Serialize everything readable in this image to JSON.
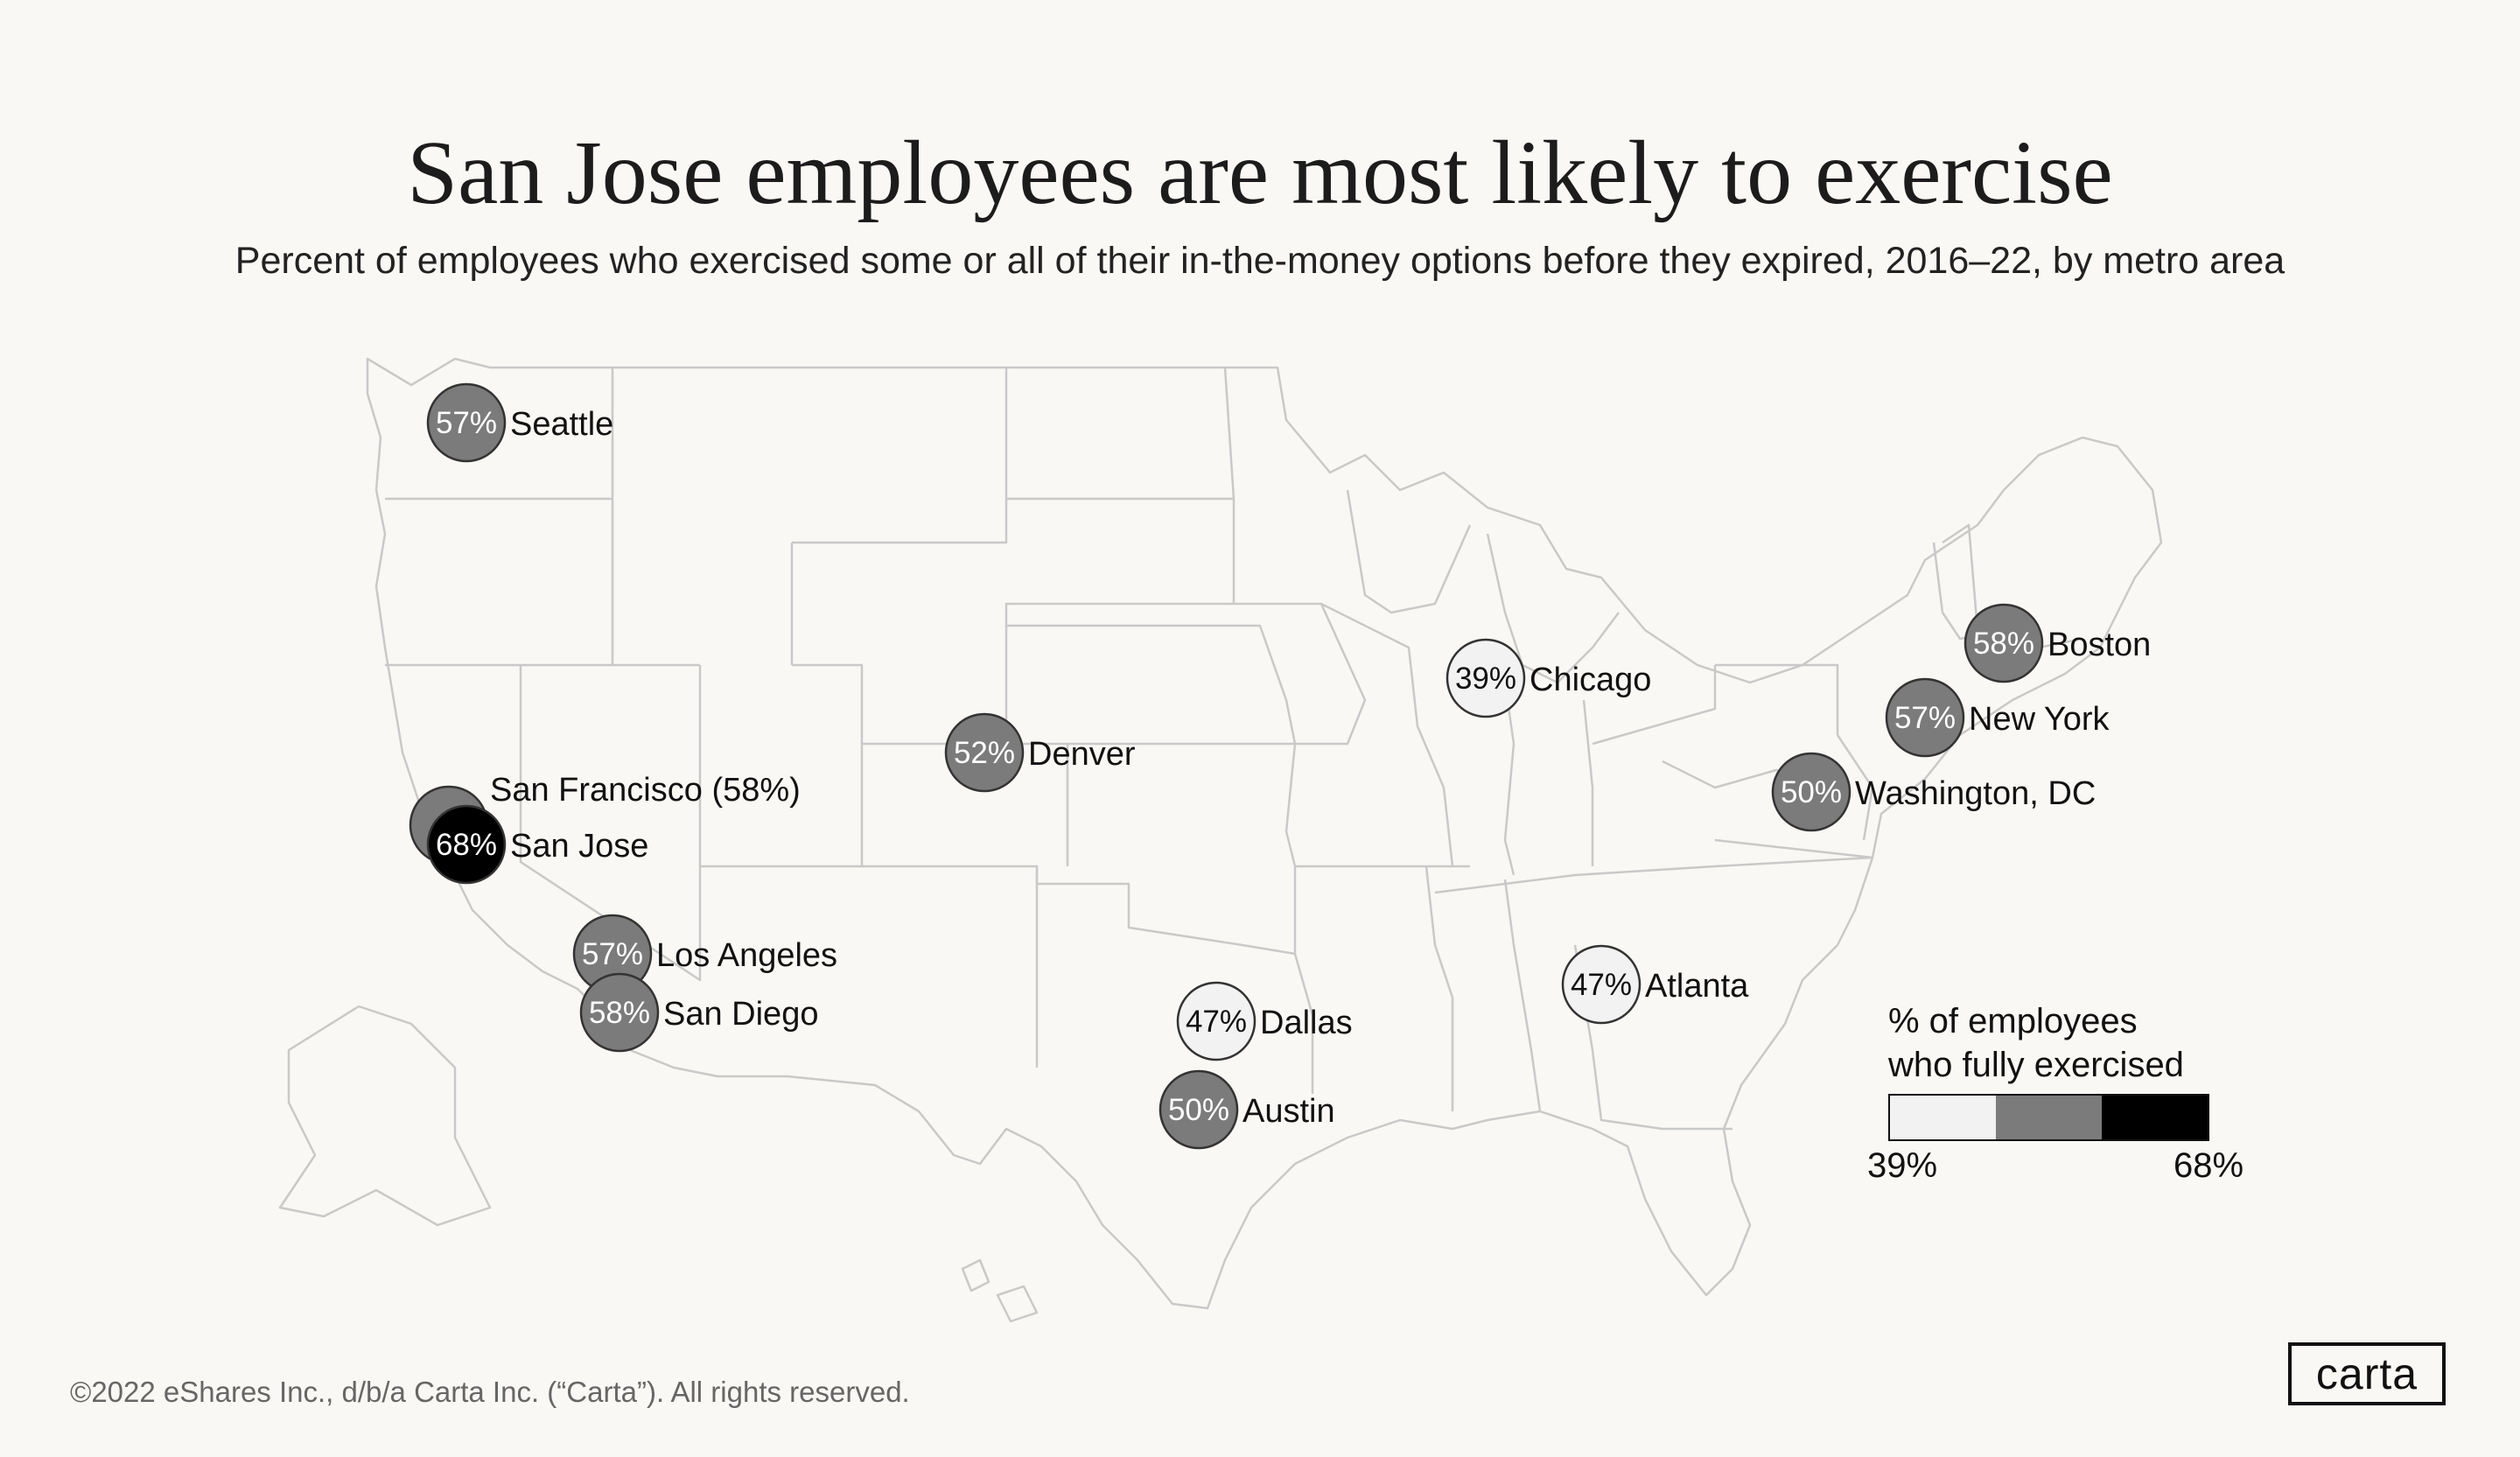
{
  "title": "San Jose employees are most likely to exercise",
  "subtitle": "Percent of employees who exercised some or all of their in-the-money options before they expired, 2016–22, by metro area",
  "legend": {
    "title_line1": "% of employees",
    "title_line2": "who fully exercised",
    "min_label": "39%",
    "max_label": "68%",
    "colors": [
      "#f2f2f2",
      "#7b7b7b",
      "#000000"
    ]
  },
  "cities": [
    {
      "name": "Seattle",
      "pct": "57%",
      "label": "Seattle",
      "tier": 1
    },
    {
      "name": "San Francisco",
      "pct": "58%",
      "label": "San Francisco (58%)",
      "tier": 1
    },
    {
      "name": "San Jose",
      "pct": "68%",
      "label": "San Jose",
      "tier": 2
    },
    {
      "name": "Los Angeles",
      "pct": "57%",
      "label": "Los Angeles",
      "tier": 1
    },
    {
      "name": "San Diego",
      "pct": "58%",
      "label": "San Diego",
      "tier": 1
    },
    {
      "name": "Denver",
      "pct": "52%",
      "label": "Denver",
      "tier": 1
    },
    {
      "name": "Dallas",
      "pct": "47%",
      "label": "Dallas",
      "tier": 0
    },
    {
      "name": "Austin",
      "pct": "50%",
      "label": "Austin",
      "tier": 1
    },
    {
      "name": "Chicago",
      "pct": "39%",
      "label": "Chicago",
      "tier": 0
    },
    {
      "name": "Atlanta",
      "pct": "47%",
      "label": "Atlanta",
      "tier": 0
    },
    {
      "name": "Boston",
      "pct": "58%",
      "label": "Boston",
      "tier": 1
    },
    {
      "name": "New York",
      "pct": "57%",
      "label": "New York",
      "tier": 1
    },
    {
      "name": "Washington, DC",
      "pct": "50%",
      "label": "Washington, DC",
      "tier": 1
    }
  ],
  "footer": "©2022 eShares Inc., d/b/a Carta Inc. (“Carta”). All rights reserved.",
  "logo": "carta"
}
